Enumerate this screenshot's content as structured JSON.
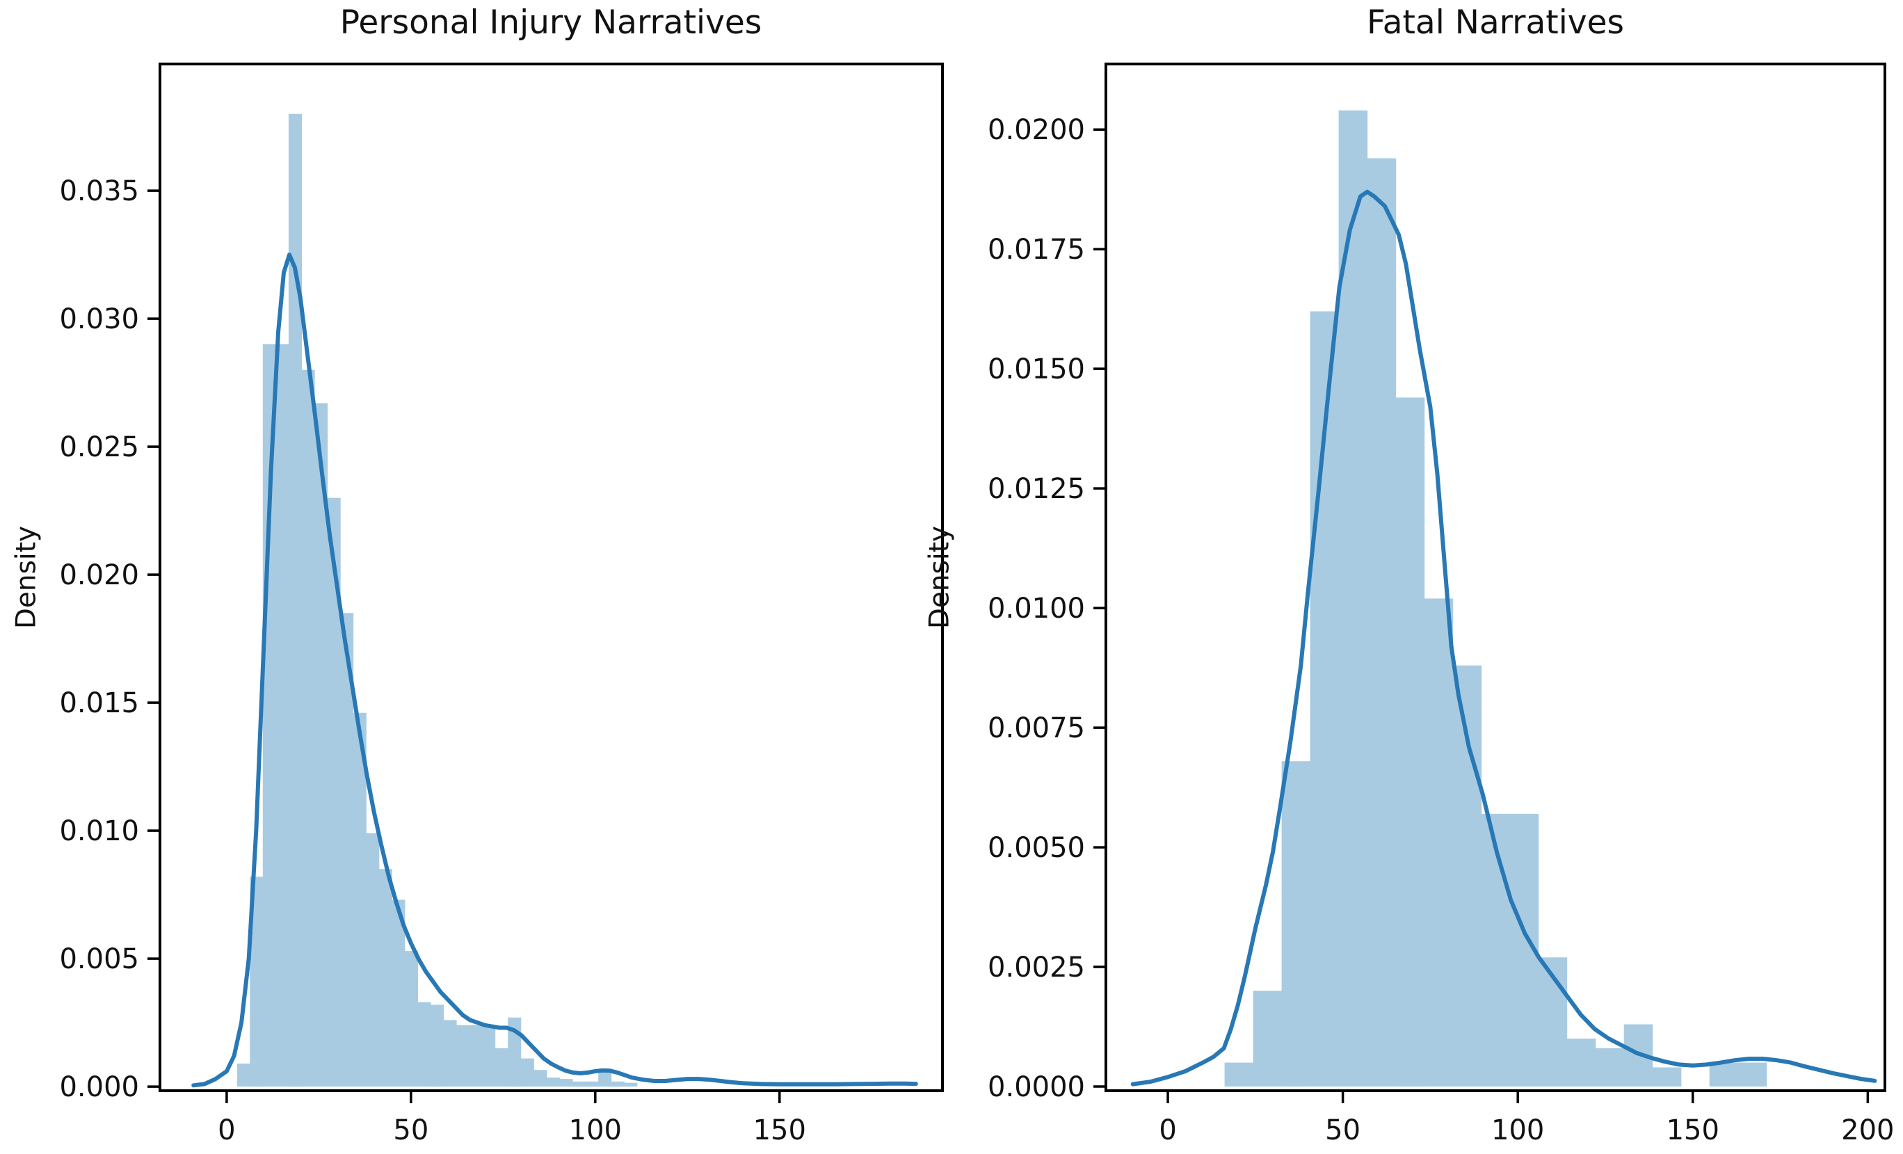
{
  "figure": {
    "background": "#ffffff"
  },
  "colors": {
    "bar_fill": "#a8cbe2",
    "kde_line": "#2878b5",
    "axis": "#000000",
    "text": "#111111"
  },
  "chart_data": [
    {
      "type": "histogram+kde",
      "title": "Personal Injury Narratives",
      "xlabel": "",
      "ylabel": "Density",
      "legend": "none",
      "grid": false,
      "xlim": [
        -18.1,
        194.2
      ],
      "ylim": [
        -0.00016,
        0.03995
      ],
      "x_ticks": [
        0,
        50,
        100,
        150
      ],
      "y_ticks": [
        0.0,
        0.005,
        0.01,
        0.015,
        0.02,
        0.025,
        0.03,
        0.035
      ],
      "y_tick_decimals": 3,
      "bin_width": 3.5,
      "bars": [
        [
          2.8,
          0.0009
        ],
        [
          6.3,
          0.0082
        ],
        [
          9.8,
          0.029
        ],
        [
          13.3,
          0.029
        ],
        [
          16.8,
          0.038
        ],
        [
          20.3,
          0.028
        ],
        [
          23.8,
          0.0267
        ],
        [
          27.3,
          0.023
        ],
        [
          30.8,
          0.0185
        ],
        [
          34.3,
          0.0146
        ],
        [
          37.8,
          0.0099
        ],
        [
          41.3,
          0.0085
        ],
        [
          44.8,
          0.0073
        ],
        [
          48.3,
          0.0053
        ],
        [
          51.8,
          0.0033
        ],
        [
          55.3,
          0.0032
        ],
        [
          58.8,
          0.0026
        ],
        [
          62.3,
          0.0024
        ],
        [
          65.8,
          0.0024
        ],
        [
          69.3,
          0.0024
        ],
        [
          72.8,
          0.0015
        ],
        [
          76.3,
          0.0027
        ],
        [
          79.8,
          0.0011
        ],
        [
          83.3,
          0.00065
        ],
        [
          86.8,
          0.00035
        ],
        [
          90.3,
          0.0003
        ],
        [
          93.8,
          0.0002
        ],
        [
          97.3,
          0.0002
        ],
        [
          100.8,
          0.00055
        ],
        [
          104.3,
          0.0002
        ],
        [
          107.8,
          0.00015
        ]
      ],
      "kde": [
        [
          -9,
          5e-05
        ],
        [
          -6,
          0.0001
        ],
        [
          -3,
          0.0003
        ],
        [
          0,
          0.0006
        ],
        [
          2,
          0.0012
        ],
        [
          4,
          0.0025
        ],
        [
          6,
          0.005
        ],
        [
          8,
          0.01
        ],
        [
          10,
          0.017
        ],
        [
          12,
          0.024
        ],
        [
          14,
          0.0295
        ],
        [
          15.5,
          0.0318
        ],
        [
          17,
          0.0325
        ],
        [
          18.5,
          0.032
        ],
        [
          20,
          0.0308
        ],
        [
          22,
          0.0285
        ],
        [
          24,
          0.0262
        ],
        [
          26,
          0.0238
        ],
        [
          28,
          0.0215
        ],
        [
          30,
          0.0195
        ],
        [
          32,
          0.0175
        ],
        [
          34,
          0.0157
        ],
        [
          36,
          0.0139
        ],
        [
          38,
          0.0122
        ],
        [
          40,
          0.0107
        ],
        [
          42,
          0.0094
        ],
        [
          44,
          0.0082
        ],
        [
          46,
          0.0072
        ],
        [
          48,
          0.0063
        ],
        [
          50,
          0.0056
        ],
        [
          52,
          0.005
        ],
        [
          54,
          0.0045
        ],
        [
          56,
          0.0041
        ],
        [
          58,
          0.0037
        ],
        [
          60,
          0.0034
        ],
        [
          62,
          0.0031
        ],
        [
          64,
          0.0028
        ],
        [
          66,
          0.0026
        ],
        [
          68,
          0.0025
        ],
        [
          70,
          0.0024
        ],
        [
          72,
          0.00235
        ],
        [
          74,
          0.0023
        ],
        [
          76,
          0.0023
        ],
        [
          78,
          0.0022
        ],
        [
          80,
          0.002
        ],
        [
          82,
          0.0017
        ],
        [
          84,
          0.0014
        ],
        [
          86,
          0.0011
        ],
        [
          88,
          0.0009
        ],
        [
          90,
          0.00075
        ],
        [
          92,
          0.00062
        ],
        [
          94,
          0.00055
        ],
        [
          96,
          0.00052
        ],
        [
          98,
          0.00055
        ],
        [
          100,
          0.0006
        ],
        [
          102,
          0.00063
        ],
        [
          104,
          0.00062
        ],
        [
          106,
          0.00055
        ],
        [
          108,
          0.00045
        ],
        [
          110,
          0.00035
        ],
        [
          113,
          0.00027
        ],
        [
          116,
          0.00022
        ],
        [
          119,
          0.00022
        ],
        [
          122,
          0.00026
        ],
        [
          125,
          0.0003
        ],
        [
          128,
          0.0003
        ],
        [
          131,
          0.00027
        ],
        [
          134,
          0.00022
        ],
        [
          137,
          0.00017
        ],
        [
          140,
          0.00013
        ],
        [
          145,
          0.0001
        ],
        [
          150,
          9e-05
        ],
        [
          155,
          9e-05
        ],
        [
          160,
          9e-05
        ],
        [
          165,
          9e-05
        ],
        [
          170,
          0.0001
        ],
        [
          175,
          0.00011
        ],
        [
          180,
          0.00012
        ],
        [
          184,
          0.00012
        ],
        [
          187,
          0.00011
        ]
      ]
    },
    {
      "type": "histogram+kde",
      "title": "Fatal Narratives",
      "xlabel": "",
      "ylabel": "Density",
      "legend": "none",
      "grid": false,
      "xlim": [
        -17.7,
        204.9
      ],
      "ylim": [
        -8.7e-05,
        0.02137
      ],
      "x_ticks": [
        0,
        50,
        100,
        150,
        200
      ],
      "y_ticks": [
        0.0,
        0.0025,
        0.005,
        0.0075,
        0.01,
        0.0125,
        0.015,
        0.0175,
        0.02
      ],
      "y_tick_decimals": 4,
      "bin_width": 8.15,
      "bars": [
        [
          16.2,
          0.0005
        ],
        [
          24.35,
          0.002
        ],
        [
          32.5,
          0.0068
        ],
        [
          40.65,
          0.0162
        ],
        [
          48.8,
          0.0204
        ],
        [
          56.95,
          0.0194
        ],
        [
          65.1,
          0.0144
        ],
        [
          73.25,
          0.0102
        ],
        [
          81.4,
          0.0088
        ],
        [
          89.55,
          0.0057
        ],
        [
          97.7,
          0.0057
        ],
        [
          105.85,
          0.0027
        ],
        [
          114.0,
          0.001
        ],
        [
          122.15,
          0.0008
        ],
        [
          130.3,
          0.0013
        ],
        [
          138.45,
          0.0004
        ],
        [
          154.75,
          0.0005
        ],
        [
          162.9,
          0.0005
        ]
      ],
      "kde": [
        [
          -10,
          5e-05
        ],
        [
          -5,
          0.0001
        ],
        [
          0,
          0.0002
        ],
        [
          5,
          0.00032
        ],
        [
          10,
          0.0005
        ],
        [
          13,
          0.00062
        ],
        [
          16,
          0.0008
        ],
        [
          18,
          0.0012
        ],
        [
          20,
          0.0017
        ],
        [
          22,
          0.0023
        ],
        [
          25,
          0.0033
        ],
        [
          28,
          0.0042
        ],
        [
          30,
          0.0049
        ],
        [
          32,
          0.0058
        ],
        [
          35,
          0.0072
        ],
        [
          38,
          0.0088
        ],
        [
          40,
          0.0103
        ],
        [
          43,
          0.0124
        ],
        [
          46,
          0.0146
        ],
        [
          49,
          0.0167
        ],
        [
          52,
          0.0179
        ],
        [
          55,
          0.0186
        ],
        [
          57,
          0.0187
        ],
        [
          59,
          0.0186
        ],
        [
          62,
          0.0184
        ],
        [
          64,
          0.0181
        ],
        [
          66,
          0.0178
        ],
        [
          68,
          0.0172
        ],
        [
          70,
          0.0163
        ],
        [
          72,
          0.0154
        ],
        [
          75,
          0.0142
        ],
        [
          77,
          0.0128
        ],
        [
          79,
          0.011
        ],
        [
          81,
          0.0092
        ],
        [
          83,
          0.0082
        ],
        [
          86,
          0.0071
        ],
        [
          90,
          0.0061
        ],
        [
          94,
          0.0049
        ],
        [
          98,
          0.0039
        ],
        [
          102,
          0.0032
        ],
        [
          106,
          0.0027
        ],
        [
          110,
          0.0023
        ],
        [
          114,
          0.0019
        ],
        [
          118,
          0.0015
        ],
        [
          122,
          0.0012
        ],
        [
          126,
          0.001
        ],
        [
          130,
          0.00085
        ],
        [
          134,
          0.0007
        ],
        [
          138,
          0.0006
        ],
        [
          142,
          0.00052
        ],
        [
          146,
          0.00046
        ],
        [
          150,
          0.00044
        ],
        [
          154,
          0.00046
        ],
        [
          158,
          0.0005
        ],
        [
          162,
          0.00055
        ],
        [
          166,
          0.00058
        ],
        [
          170,
          0.00058
        ],
        [
          174,
          0.00055
        ],
        [
          178,
          0.0005
        ],
        [
          182,
          0.00042
        ],
        [
          186,
          0.00035
        ],
        [
          190,
          0.00028
        ],
        [
          194,
          0.00022
        ],
        [
          198,
          0.00016
        ],
        [
          202,
          0.00012
        ]
      ]
    }
  ]
}
